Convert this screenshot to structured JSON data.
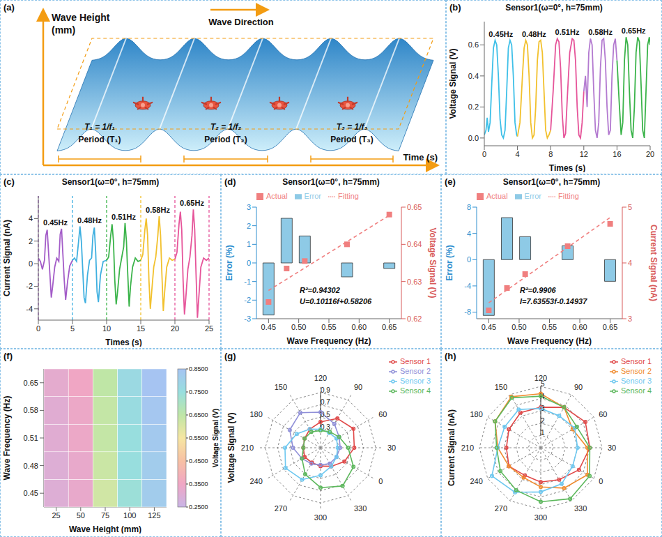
{
  "chart_data": [
    {
      "panel": "(a)",
      "type": "diagram",
      "y_axis_label": "Wave Height (mm)",
      "x_axis_label": "Time (s)",
      "direction_label": "Wave Direction",
      "periods": [
        {
          "formula": "T₁ = 1/f₁",
          "label": "Period (T₁)"
        },
        {
          "formula": "T₂ = 1/f₂",
          "label": "Period (T₂)"
        },
        {
          "formula": "T₃ = 1/f₃",
          "label": "Period (T₃)"
        }
      ]
    },
    {
      "panel": "(b)",
      "type": "line",
      "title": "Sensor1(ω=0°, h=75mm)",
      "x_label": "Times (s)",
      "y_label": "Voltage Signal (V)",
      "xlim": [
        0,
        20
      ],
      "xticks": [
        0,
        4,
        8,
        12,
        16,
        20
      ],
      "ylim": [
        -0.05,
        0.75
      ],
      "yticks": [
        {
          "value": 0,
          "label": "0.0"
        },
        0.2,
        0.4,
        0.6
      ],
      "series": [
        {
          "name": "0.45Hz",
          "color": "#3fc0e8",
          "x": [
            0,
            0.2,
            0.35,
            0.5,
            0.7,
            0.9,
            1.1,
            1.3,
            1.5,
            1.7,
            1.9,
            2.1,
            2.3,
            2.5,
            2.7,
            2.9,
            3.1,
            3.3,
            3.5,
            3.7,
            3.9,
            4.0
          ],
          "values": [
            0.02,
            0.05,
            0.13,
            0.04,
            0.1,
            0.35,
            0.58,
            0.63,
            0.6,
            0.4,
            0.12,
            0.02,
            0,
            0.05,
            0.3,
            0.58,
            0.63,
            0.6,
            0.4,
            0.1,
            0.02,
            0.01
          ]
        },
        {
          "name": "0.48Hz",
          "color": "#f2c12e",
          "x": [
            4.0,
            4.3,
            4.6,
            4.8,
            5.0,
            5.2,
            5.4,
            5.6,
            5.8,
            6.0,
            6.2,
            6.4,
            6.6,
            6.8,
            7.0,
            7.2,
            7.4,
            7.6,
            7.8,
            8.0
          ],
          "values": [
            0.01,
            0.1,
            0.4,
            0.58,
            0.63,
            0.6,
            0.4,
            0.1,
            0,
            0.02,
            0.2,
            0.5,
            0.62,
            0.63,
            0.55,
            0.3,
            0.05,
            0,
            0.02,
            0.05
          ]
        },
        {
          "name": "0.51Hz",
          "color": "#e6559a",
          "x": [
            8.0,
            8.3,
            8.6,
            8.8,
            9.0,
            9.2,
            9.4,
            9.6,
            9.8,
            10.0,
            10.3,
            10.6,
            10.8,
            11.0,
            11.2,
            11.4,
            11.6,
            11.8,
            12.0
          ],
          "values": [
            0.05,
            0.3,
            0.6,
            0.64,
            0.62,
            0.45,
            0.15,
            0,
            0.03,
            0.25,
            0.55,
            0.64,
            0.63,
            0.5,
            0.2,
            0.02,
            0,
            0.1,
            0.3
          ]
        },
        {
          "name": "0.58Hz",
          "color": "#b37ad0",
          "x": [
            12.0,
            12.2,
            12.4,
            12.6,
            12.8,
            13.0,
            13.2,
            13.4,
            13.6,
            13.8,
            14.0,
            14.2,
            14.4,
            14.6,
            14.8,
            15.0,
            15.2,
            15.4,
            15.6,
            15.8,
            16.0
          ],
          "values": [
            0.3,
            0.4,
            0.2,
            0.55,
            0.64,
            0.6,
            0.3,
            0.05,
            0,
            0.1,
            0.45,
            0.63,
            0.64,
            0.5,
            0.2,
            0.02,
            0.05,
            0.4,
            0.6,
            0.64,
            0.5
          ]
        },
        {
          "name": "0.65Hz",
          "color": "#3cb44b",
          "x": [
            16.0,
            16.3,
            16.5,
            16.7,
            16.9,
            17.1,
            17.3,
            17.5,
            17.7,
            17.9,
            18.1,
            18.3,
            18.5,
            18.7,
            18.9,
            19.1,
            19.3,
            19.5,
            19.7,
            19.9,
            20.0
          ],
          "values": [
            0.5,
            0.2,
            0.02,
            0.1,
            0.5,
            0.65,
            0.6,
            0.3,
            0.05,
            0,
            0.2,
            0.55,
            0.65,
            0.62,
            0.35,
            0.05,
            0,
            0.3,
            0.6,
            0.65,
            0.6
          ]
        }
      ]
    },
    {
      "panel": "(c)",
      "type": "line",
      "title": "Sensor1(ω=0°, h=75mm)",
      "x_label": "Times (s)",
      "y_label": "Current Signal (nA)",
      "xlim": [
        0,
        25
      ],
      "xticks": [
        0,
        5,
        10,
        15,
        20,
        25
      ],
      "ylim": [
        -5,
        6
      ],
      "yticks": [
        -4,
        -2,
        0,
        2,
        4
      ],
      "series": [
        {
          "name": "0.45Hz",
          "color": "#a35cc8",
          "x": [
            0,
            0.3,
            0.6,
            0.9,
            1.1,
            1.3,
            1.5,
            1.7,
            1.9,
            2.1,
            2.4,
            2.7,
            3.0,
            3.2,
            3.4,
            3.6,
            3.8,
            4.0,
            4.3,
            4.6,
            5.0
          ],
          "values": [
            0.5,
            0.2,
            -0.5,
            0.3,
            2.5,
            3.0,
            1.0,
            -1.0,
            -3.0,
            -2.0,
            -0.3,
            0.5,
            0.2,
            2.6,
            3.1,
            0.8,
            -1.5,
            -3.2,
            -1.5,
            -0.2,
            0.3
          ]
        },
        {
          "name": "0.48Hz",
          "color": "#3fb0e0",
          "x": [
            5.0,
            5.3,
            5.6,
            5.9,
            6.1,
            6.3,
            6.5,
            6.7,
            6.9,
            7.2,
            7.5,
            7.8,
            8.0,
            8.2,
            8.4,
            8.6,
            8.8,
            9.1,
            9.5,
            10.0
          ],
          "values": [
            0.3,
            0.5,
            0.2,
            2.0,
            3.3,
            2.0,
            -0.5,
            -3.0,
            -3.5,
            -1.0,
            0.3,
            0.5,
            2.5,
            3.2,
            1.0,
            -2.5,
            -3.4,
            -1.0,
            0.2,
            0.3
          ]
        },
        {
          "name": "0.51Hz",
          "color": "#3cb44b",
          "x": [
            10.0,
            10.3,
            10.6,
            10.8,
            11.0,
            11.2,
            11.4,
            11.6,
            11.9,
            12.2,
            12.5,
            12.7,
            12.9,
            13.1,
            13.3,
            13.5,
            13.8,
            14.2,
            14.6,
            15.0
          ],
          "values": [
            0.3,
            0.6,
            2.5,
            3.5,
            2.0,
            -1.5,
            -3.6,
            -2.5,
            -0.5,
            0.5,
            1.5,
            3.6,
            2.0,
            -1.0,
            -3.8,
            -2.0,
            -0.3,
            0.5,
            0.2,
            0.3
          ]
        },
        {
          "name": "0.58Hz",
          "color": "#f2c12e",
          "x": [
            15.0,
            15.3,
            15.6,
            15.8,
            16.0,
            16.2,
            16.4,
            16.6,
            16.9,
            17.2,
            17.5,
            17.7,
            17.9,
            18.1,
            18.3,
            18.5,
            18.8,
            19.2,
            19.6,
            20.0
          ],
          "values": [
            0.3,
            0.8,
            3.0,
            4.0,
            2.5,
            -1.5,
            -4.0,
            -2.5,
            -0.3,
            0.6,
            2.5,
            4.2,
            2.5,
            -1.0,
            -4.2,
            -2.5,
            -0.3,
            0.5,
            0.3,
            0.4
          ]
        },
        {
          "name": "0.65Hz",
          "color": "#e6559a",
          "x": [
            20.0,
            20.3,
            20.6,
            20.8,
            21.0,
            21.2,
            21.4,
            21.6,
            21.9,
            22.2,
            22.5,
            22.7,
            22.9,
            23.1,
            23.3,
            23.5,
            23.8,
            24.2,
            24.6,
            25.0
          ],
          "values": [
            0.4,
            1.0,
            3.5,
            4.6,
            3.0,
            -1.5,
            -4.5,
            -3.0,
            -0.5,
            0.6,
            2.5,
            4.8,
            3.0,
            -1.0,
            -4.8,
            -3.0,
            -0.3,
            0.5,
            0.3,
            0.5
          ]
        }
      ]
    },
    {
      "panel": "(d)",
      "type": "combo",
      "title": "Sensor1(ω=0°, h=75mm)",
      "x_label": "Wave Frequency (Hz)",
      "y_label": "Error (%)",
      "y2_label": "Voltage Signal (V)",
      "xlim": [
        0.43,
        0.67
      ],
      "xticks": [
        0.45,
        {
          "value": 0.5,
          "label": "0.50"
        },
        0.55,
        {
          "value": 0.6,
          "label": "0.60"
        },
        0.65
      ],
      "ylim": [
        -3,
        3
      ],
      "yticks": [
        -3,
        -2,
        -1,
        0,
        1,
        2,
        3
      ],
      "y2lim": [
        0.62,
        0.65
      ],
      "y2ticks": [
        0.62,
        0.63,
        0.64,
        0.65
      ],
      "legend": "top",
      "annotations": [
        "R²=0.94302",
        "U=0.10116f+0.58206"
      ],
      "series": [
        {
          "name": "Error",
          "type": "bar",
          "color": "#8ecae6",
          "x": [
            0.45,
            0.48,
            0.51,
            0.58,
            0.65
          ],
          "values": [
            -2.8,
            2.4,
            1.45,
            -0.75,
            -0.3
          ]
        },
        {
          "name": "Fitting",
          "type": "line",
          "line_style": "dashed",
          "color": "#f07f7f",
          "axis": "y2",
          "x": [
            0.45,
            0.65
          ],
          "values": [
            0.6276,
            0.6478
          ]
        },
        {
          "name": "Actual",
          "type": "scatter",
          "marker": "square",
          "color": "#f07f7f",
          "axis": "y2",
          "x": [
            0.45,
            0.48,
            0.51,
            0.58,
            0.65
          ],
          "values": [
            0.6245,
            0.6335,
            0.6355,
            0.64,
            0.648
          ]
        }
      ]
    },
    {
      "panel": "(e)",
      "type": "combo",
      "title": "Sensor1(ω=0°, h=75mm)",
      "x_label": "Wave Frequency (Hz)",
      "y_label": "Error (%)",
      "y2_label": "Current Signal (nA)",
      "xlim": [
        0.43,
        0.67
      ],
      "xticks": [
        0.45,
        {
          "value": 0.5,
          "label": "0.50"
        },
        0.55,
        {
          "value": 0.6,
          "label": "0.60"
        },
        0.65
      ],
      "ylim": [
        -9,
        8
      ],
      "yticks": [
        -8,
        -4,
        0,
        4,
        8
      ],
      "y2lim": [
        3,
        5
      ],
      "y2ticks": [
        3,
        4,
        5
      ],
      "legend": "top",
      "annotations": [
        "R²=0.9906",
        "I=7.63553f-0.14937"
      ],
      "series": [
        {
          "name": "Error",
          "type": "bar",
          "color": "#8ecae6",
          "x": [
            0.45,
            0.48,
            0.51,
            0.58,
            0.65
          ],
          "values": [
            -8.5,
            6.4,
            3.5,
            2.1,
            -3.3
          ]
        },
        {
          "name": "Fitting",
          "type": "line",
          "line_style": "dashed",
          "color": "#f07f7f",
          "axis": "y2",
          "x": [
            0.45,
            0.65
          ],
          "values": [
            3.286,
            4.814
          ]
        },
        {
          "name": "Actual",
          "type": "scatter",
          "marker": "square",
          "color": "#f07f7f",
          "axis": "y2",
          "x": [
            0.45,
            0.48,
            0.51,
            0.58,
            0.65
          ],
          "values": [
            3.15,
            3.55,
            3.8,
            4.3,
            4.7
          ]
        }
      ]
    },
    {
      "panel": "(f)",
      "type": "heatmap",
      "x_label": "Wave Height (mm)",
      "y_label": "Wave Frequency (Hz)",
      "x": [
        25,
        50,
        75,
        100,
        125
      ],
      "xlim": [
        12.5,
        137.5
      ],
      "xticks": [
        25,
        50,
        75,
        100,
        125
      ],
      "y": [
        "0.45",
        "0.48",
        "0.51",
        "0.58",
        "0.65"
      ],
      "values": [
        [
          0.3,
          0.33,
          0.62,
          0.74,
          0.82
        ],
        [
          0.3,
          0.33,
          0.63,
          0.75,
          0.82
        ],
        [
          0.31,
          0.34,
          0.64,
          0.75,
          0.83
        ],
        [
          0.31,
          0.34,
          0.64,
          0.76,
          0.84
        ],
        [
          0.32,
          0.35,
          0.65,
          0.77,
          0.85
        ]
      ],
      "colorbar": {
        "title": "Voltage Signal (V)",
        "range": [
          0.25,
          0.85
        ],
        "ticks": [
          {
            "value": 0.25,
            "label": "0.2500"
          },
          {
            "value": 0.35,
            "label": "0.3500"
          },
          {
            "value": 0.45,
            "label": "0.4500"
          },
          {
            "value": 0.55,
            "label": "0.5500"
          },
          {
            "value": 0.65,
            "label": "0.6500"
          },
          {
            "value": 0.75,
            "label": "0.7500"
          },
          {
            "value": 0.85,
            "label": "0.8500"
          }
        ]
      }
    },
    {
      "panel": "(g)",
      "type": "radar",
      "y_label": "Voltage Signal (V)",
      "categories": [
        0,
        30,
        60,
        90,
        120,
        150,
        180,
        210,
        240,
        270,
        300,
        330
      ],
      "ylim": [
        0,
        0.9
      ],
      "yticks": [
        0.3,
        0.5,
        0.7,
        0.9
      ],
      "legend": "upper right",
      "series": [
        {
          "name": "Sensor 1",
          "color": "#e04848",
          "values": [
            0.62,
            0.55,
            0.42,
            0.35,
            0.3,
            0.28,
            0.3,
            0.28,
            0.3,
            0.35,
            0.45,
            0.55
          ]
        },
        {
          "name": "Sensor 2",
          "color": "#8f8fd8",
          "values": [
            0.35,
            0.45,
            0.58,
            0.66,
            0.58,
            0.45,
            0.35,
            0.3,
            0.28,
            0.3,
            0.3,
            0.32
          ]
        },
        {
          "name": "Sensor 3",
          "color": "#6ec8f0",
          "values": [
            0.3,
            0.28,
            0.3,
            0.35,
            0.45,
            0.58,
            0.66,
            0.6,
            0.45,
            0.35,
            0.3,
            0.28
          ]
        },
        {
          "name": "Sensor 4",
          "color": "#5cb85c",
          "values": [
            0.35,
            0.3,
            0.28,
            0.3,
            0.3,
            0.28,
            0.35,
            0.5,
            0.65,
            0.72,
            0.62,
            0.45
          ]
        }
      ]
    },
    {
      "panel": "(h)",
      "type": "radar",
      "y_label": "Current Signal (nA)",
      "categories": [
        0,
        30,
        60,
        90,
        120,
        150,
        180,
        210,
        240,
        270,
        300,
        330
      ],
      "ylim": [
        0,
        5
      ],
      "yticks": [
        1,
        2,
        3,
        4,
        5
      ],
      "legend": "upper right",
      "series": [
        {
          "name": "Sensor 1",
          "color": "#e04848",
          "values": [
            4.2,
            3.8,
            3.3,
            3.3,
            3.0,
            2.8,
            3.0,
            2.6,
            2.8,
            3.0,
            3.6,
            4.0
          ]
        },
        {
          "name": "Sensor 2",
          "color": "#f08c30",
          "values": [
            3.0,
            3.8,
            4.4,
            4.8,
            4.3,
            3.5,
            3.0,
            2.8,
            3.2,
            3.8,
            4.4,
            3.8
          ]
        },
        {
          "name": "Sensor 3",
          "color": "#6ec8f0",
          "values": [
            3.2,
            3.0,
            3.2,
            3.6,
            3.4,
            3.5,
            4.6,
            4.2,
            3.6,
            3.4,
            3.0,
            3.0
          ]
        },
        {
          "name": "Sensor 4",
          "color": "#5cb85c",
          "values": [
            3.4,
            3.8,
            4.2,
            4.7,
            4.3,
            3.6,
            3.8,
            4.0,
            4.4,
            4.8,
            4.6,
            4.0
          ]
        }
      ]
    }
  ]
}
